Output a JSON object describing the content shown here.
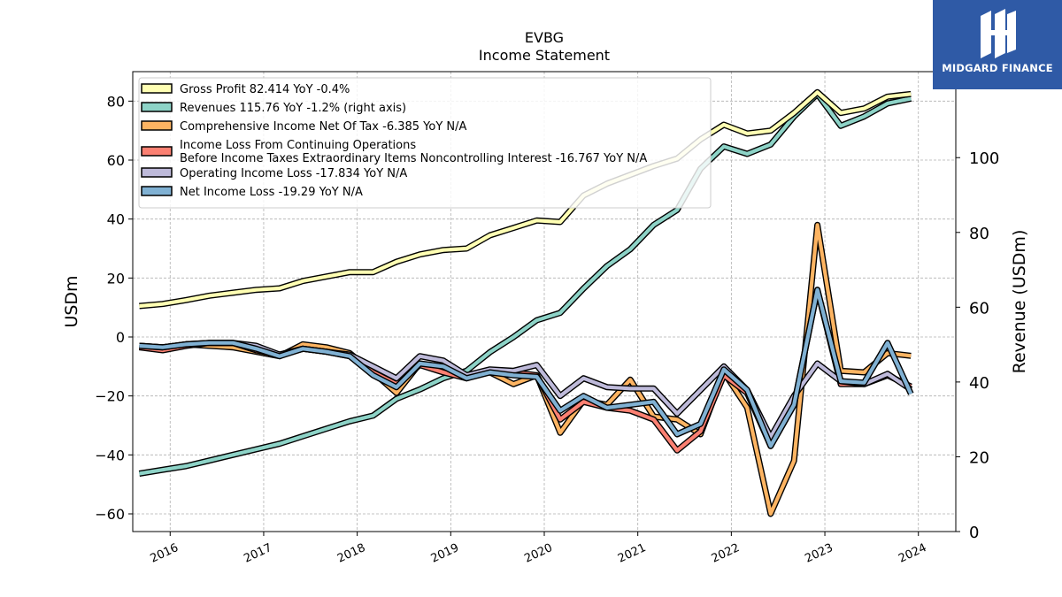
{
  "chart_data": {
    "type": "line",
    "title": "EVBG",
    "subtitle": "Income Statement",
    "ylabel": "USDm",
    "y2label": "Revenue (USDm)",
    "ylim": [
      -66,
      90
    ],
    "y2lim": [
      0,
      123
    ],
    "yticks": [
      80,
      60,
      40,
      20,
      0,
      -20,
      -40,
      -60
    ],
    "y2ticks": [
      100,
      80,
      60,
      40,
      20,
      0
    ],
    "xlim": [
      2015.6,
      2024.4
    ],
    "xticks": [
      "2016",
      "2017",
      "2018",
      "2019",
      "2020",
      "2021",
      "2022",
      "2023",
      "2024"
    ],
    "grid": true,
    "legend_position": "top-left",
    "x": [
      2015.67,
      2015.92,
      2016.17,
      2016.42,
      2016.67,
      2016.92,
      2017.17,
      2017.42,
      2017.67,
      2017.92,
      2018.17,
      2018.42,
      2018.67,
      2018.92,
      2019.17,
      2019.42,
      2019.67,
      2019.92,
      2020.17,
      2020.42,
      2020.67,
      2020.92,
      2021.17,
      2021.42,
      2021.67,
      2021.92,
      2022.17,
      2022.42,
      2022.67,
      2022.92,
      2023.17,
      2023.42,
      2023.67,
      2023.92,
      2024.17
    ],
    "series": [
      {
        "name": "Gross Profit  82.414 YoY -0.4%",
        "axis": "left",
        "color": "#ffffb3",
        "values": [
          10.5,
          11.2,
          12.5,
          14,
          15,
          16,
          16.5,
          19,
          20.5,
          22,
          22,
          25.5,
          28,
          29.5,
          30,
          34.5,
          37,
          39.5,
          39,
          48,
          52,
          55,
          58,
          60.5,
          67,
          72,
          69,
          70,
          76,
          83,
          76,
          77.5,
          81.5,
          82.4,
          null
        ]
      },
      {
        "name": "Revenues  115.76 YoY -1.2% (right axis)",
        "axis": "right",
        "color": "#8dd3c7",
        "values": [
          15.5,
          16.5,
          17.5,
          19,
          20.5,
          22,
          23.5,
          25.5,
          27.5,
          29.5,
          31,
          35.5,
          38,
          41,
          43,
          48,
          52,
          56.5,
          58.5,
          65,
          71,
          75.5,
          82,
          86,
          97,
          103,
          101,
          103.5,
          111,
          117,
          108.5,
          111,
          114.5,
          115.8,
          null
        ]
      },
      {
        "name": "Comprehensive Income Net Of Tax  -6.385 YoY N/A",
        "axis": "left",
        "color": "#fdb462",
        "values": [
          -3,
          -3.5,
          -2.5,
          -3,
          -3.5,
          -5,
          -6.5,
          -2.5,
          -3.5,
          -5.5,
          -12,
          -19,
          -9,
          -11,
          -13,
          -12,
          -16,
          -13,
          -32.5,
          -21.5,
          -23,
          -14.5,
          -27,
          -28,
          -33,
          -12,
          -24,
          -60,
          -42,
          38,
          -11.5,
          -12,
          -5.5,
          -6.4,
          null
        ]
      },
      {
        "name": "Income Loss From Continuing Operations\nBefore Income Taxes Extraordinary Items Noncontrolling Interest  -16.767 YoY N/A",
        "axis": "left",
        "color": "#fb8072",
        "values": [
          -3.5,
          -4.5,
          -3,
          -2,
          -2,
          -4.5,
          -6,
          -4,
          -5,
          -6.5,
          -12,
          -16,
          -9.5,
          -12,
          -14,
          -11.5,
          -12,
          -13,
          -28,
          -22,
          -24,
          -25,
          -28,
          -38.5,
          -32,
          -13,
          -19,
          -37,
          -23,
          16,
          -16,
          -16,
          -13,
          -16.8,
          null
        ]
      },
      {
        "name": "Operating Income Loss  -17.834 YoY N/A",
        "axis": "left",
        "color": "#bebada",
        "values": [
          -3,
          -3.5,
          -2.5,
          -2,
          -2,
          -3,
          -6,
          -4,
          -5,
          -6,
          -10,
          -14,
          -6.5,
          -8,
          -13,
          -11,
          -11.5,
          -9.5,
          -20,
          -14,
          -17,
          -17.5,
          -17.5,
          -26,
          -18,
          -10,
          -18,
          -34,
          -20,
          -9,
          -15,
          -16,
          -12.5,
          -17.8,
          null
        ]
      },
      {
        "name": "Net Income Loss  -19.29 YoY N/A",
        "axis": "left",
        "color": "#80b1d3",
        "values": [
          -3,
          -3.5,
          -2.5,
          -2,
          -2,
          -4,
          -6.5,
          -4,
          -5,
          -6.5,
          -13,
          -17,
          -9,
          -10,
          -14,
          -12,
          -13,
          -13.5,
          -25,
          -20,
          -24,
          -23,
          -22,
          -33,
          -29.5,
          -11,
          -18,
          -37,
          -23,
          16,
          -15,
          -15.5,
          -2,
          -19.3,
          null
        ]
      }
    ]
  },
  "branding": {
    "logo_text": "MIDGARD FINANCE"
  }
}
